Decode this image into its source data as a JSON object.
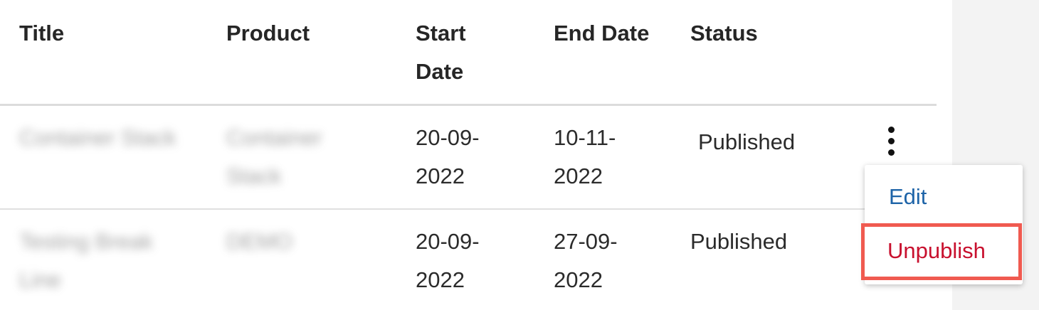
{
  "table": {
    "headers": {
      "title": "Title",
      "product": "Product",
      "start_date": "Start Date",
      "end_date": "End Date",
      "status": "Status"
    },
    "rows": [
      {
        "title": "Container Stack",
        "product": "Container Stack",
        "start_date": "20-09-2022",
        "end_date": "10-11-2022",
        "status": "Published"
      },
      {
        "title": "Testing Break Line",
        "product": "DEMO",
        "start_date": "20-09-2022",
        "end_date": "27-09-2022",
        "status": "Published"
      }
    ]
  },
  "actions_menu": {
    "icon": "more-vertical-icon",
    "items": [
      {
        "label": "Edit",
        "color": "#1e64a8"
      },
      {
        "label": "Unpublish",
        "color": "#c8102e"
      }
    ],
    "highlight_color": "#f05a50"
  }
}
